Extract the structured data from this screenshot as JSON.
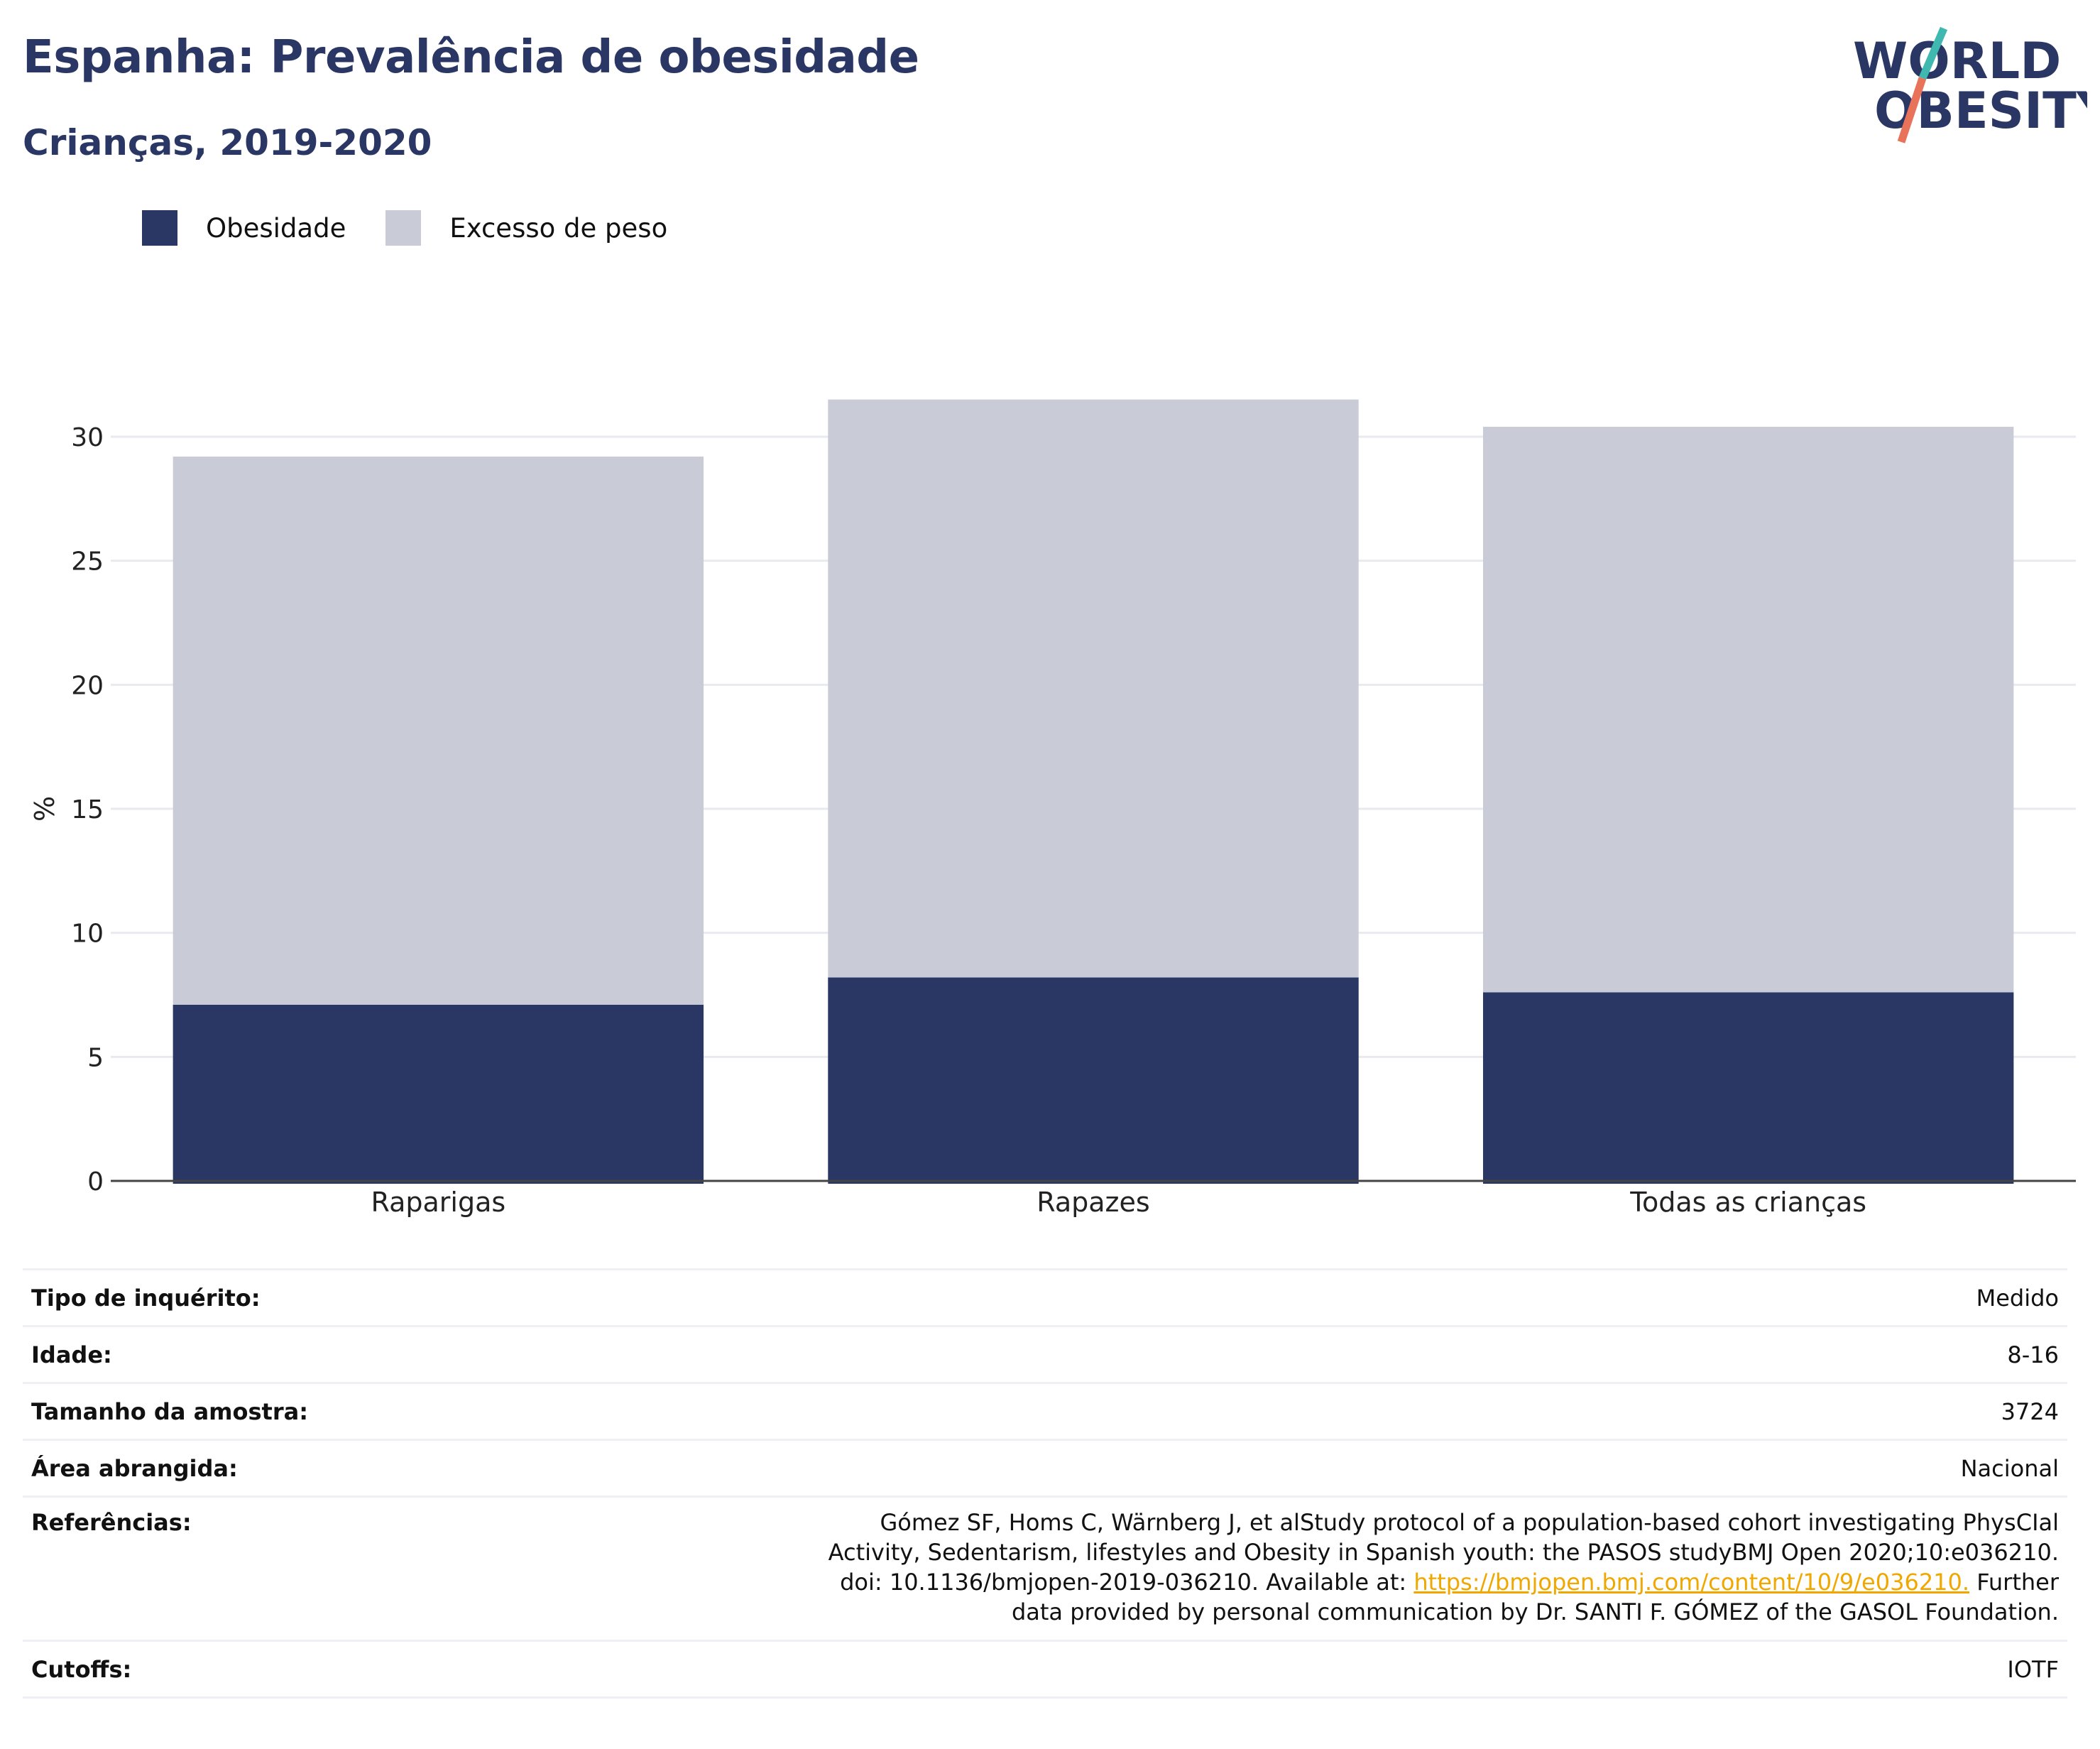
{
  "header": {
    "title": "Espanha: Prevalência de obesidade",
    "subtitle": "Crianças, 2019-2020"
  },
  "logo": {
    "line1": "WORLD",
    "line2": "OBESITY",
    "slash_colors": [
      "#3fb8b0",
      "#e8735a"
    ]
  },
  "legend": [
    {
      "label": "Obesidade",
      "color": "#2a3663"
    },
    {
      "label": "Excesso de peso",
      "color": "#c9cbd6"
    }
  ],
  "chart_data": {
    "type": "bar",
    "stacked": "overlay",
    "categories": [
      "Raparigas",
      "Rapazes",
      "Todas as crianças"
    ],
    "series": [
      {
        "name": "Obesidade",
        "values": [
          7.1,
          8.2,
          7.6
        ],
        "color": "#2a3663"
      },
      {
        "name": "Excesso de peso",
        "values": [
          29.2,
          31.5,
          30.4
        ],
        "color": "#c9cbd6"
      }
    ],
    "ylabel": "%",
    "ylim": [
      0,
      32
    ],
    "yticks": [
      0,
      5,
      10,
      15,
      20,
      25,
      30
    ],
    "grid": true,
    "legend_position": "top-left"
  },
  "info": {
    "survey_type": {
      "label": "Tipo de inquérito:",
      "value": "Medido"
    },
    "age": {
      "label": "Idade:",
      "value": "8-16"
    },
    "sample_size": {
      "label": "Tamanho da amostra:",
      "value": "3724"
    },
    "area": {
      "label": "Área abrangida:",
      "value": "Nacional"
    },
    "references": {
      "label": "Referências:",
      "text_before": "Gómez SF, Homs C, Wärnberg J, et alStudy protocol of a population-based cohort investigating PhysCIal Activity, Sedentarism, lifestyles and Obesity in Spanish youth: the PASOS studyBMJ Open 2020;10:e036210. doi: 10.1136/bmjopen-2019-036210. Available at:",
      "link": "https://bmjopen.bmj.com/content/10/9/e036210.",
      "text_after": "Further data provided by personal communication by Dr. SANTI F. GÓMEZ of the GASOL Foundation."
    },
    "cutoffs": {
      "label": "Cutoffs:",
      "value": "IOTF"
    }
  }
}
